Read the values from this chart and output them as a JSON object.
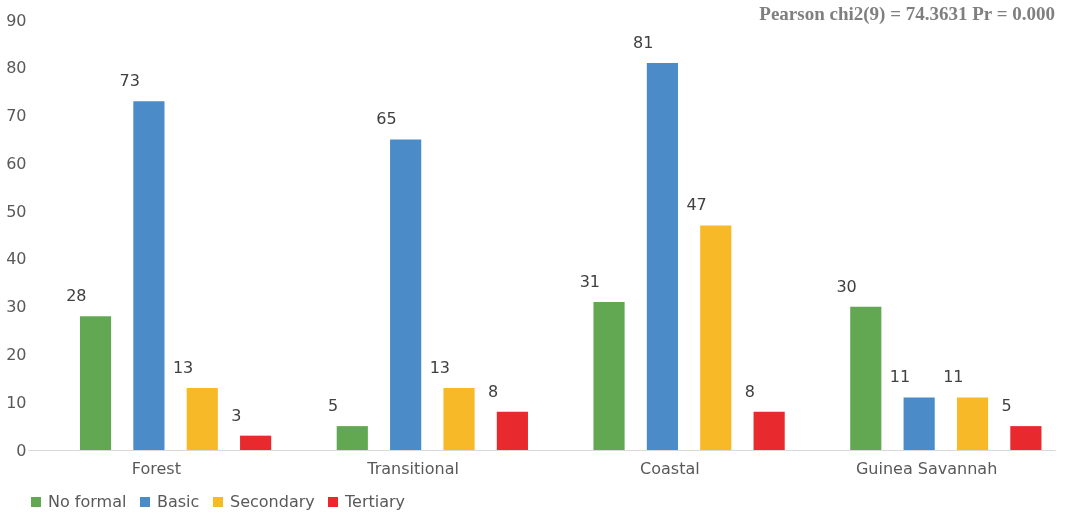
{
  "chart_data": {
    "type": "bar",
    "categories": [
      "Forest",
      "Transitional",
      "Coastal",
      "Guinea Savannah"
    ],
    "series": [
      {
        "name": "No formal",
        "color": "#62a852",
        "values": [
          28,
          5,
          31,
          30
        ]
      },
      {
        "name": "Basic",
        "color": "#4a8bc8",
        "values": [
          73,
          65,
          81,
          11
        ]
      },
      {
        "name": "Secondary",
        "color": "#f7b928",
        "values": [
          13,
          13,
          47,
          11
        ]
      },
      {
        "name": "Tertiary",
        "color": "#e8292e",
        "values": [
          3,
          8,
          8,
          5
        ]
      }
    ],
    "ylim": [
      0,
      90
    ],
    "yticks": [
      0,
      10,
      20,
      30,
      40,
      50,
      60,
      70,
      80,
      90
    ],
    "grid": false,
    "legend": "bottom",
    "data_labels": true,
    "annotations": [
      "Pearson chi2(9) =  74.3631   Pr = 0.000"
    ]
  }
}
